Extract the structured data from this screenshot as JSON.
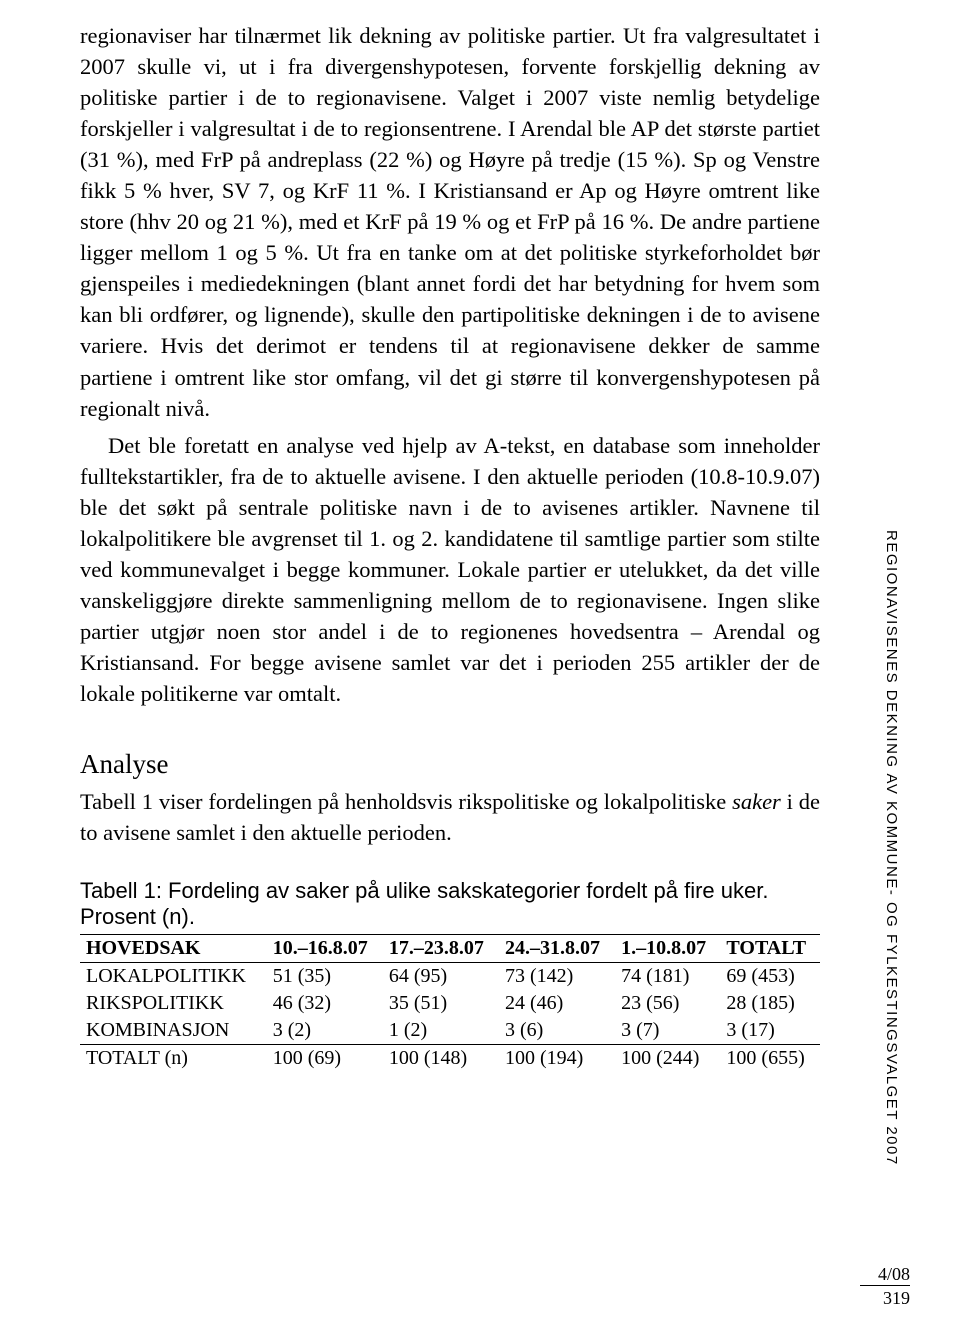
{
  "colors": {
    "background": "#ffffff",
    "text": "#000000",
    "rule": "#000000"
  },
  "typography": {
    "body_font": "Georgia, Times New Roman, serif",
    "body_size_pt": 17,
    "caption_font": "Arial, Helvetica, sans-serif",
    "caption_size_pt": 16,
    "side_size_pt": 11,
    "heading_size_pt": 20
  },
  "paragraphs": {
    "p1": "regionaviser har tilnærmet lik dekning av politiske partier. Ut fra valgresultatet i 2007 skulle vi, ut i fra divergenshypotesen, forvente forskjellig dekning av politiske partier i de to regionavisene. Valget i 2007 viste nemlig betydelige forskjeller i valgresultat i de to regionsentrene. I Arendal ble AP det største partiet (31 %), med FrP på andreplass (22 %) og Høyre på tredje (15 %). Sp og Venstre fikk 5 % hver, SV 7, og KrF 11 %. I Kristiansand er Ap og Høyre omtrent like store (hhv 20 og 21 %), med et KrF på 19 % og et FrP på 16 %. De andre partiene ligger mellom 1 og 5 %. Ut fra en tanke om at det politiske styrkeforholdet bør gjenspeiles i mediedekningen (blant annet fordi det har betydning for hvem som kan bli ordfører, og lignende), skulle den partipolitiske dekningen i de to avisene variere. Hvis det derimot er tendens til at regionavisene dekker de samme partiene i omtrent like stor omfang, vil det gi større til konvergenshypotesen på regionalt nivå.",
    "p2": "Det ble foretatt en analyse ved hjelp av A-tekst, en database som inneholder fulltekstartikler, fra de to aktuelle avisene. I den aktuelle perioden (10.8-10.9.07) ble det søkt på sentrale politiske navn i de to avisenes artikler. Navnene til lokalpolitikere ble avgrenset til 1. og 2. kandidatene til samtlige partier som stilte ved kommunevalget i begge kommuner. Lokale partier er utelukket, da det ville vanskeliggjøre direkte sammenligning mellom de to regionavisene. Ingen slike partier utgjør noen stor andel i de to regionenes hovedsentra – Arendal og Kristiansand. For begge avisene samlet var det i perioden 255 artikler der de lokale politikerne var omtalt."
  },
  "heading_analyse": "Analyse",
  "analyse_intro_a": "Tabell 1 viser fordelingen på henholdsvis rikspolitiske og lokalpolitiske ",
  "analyse_intro_italic": "saker",
  "analyse_intro_b": " i de to avisene samlet i den aktuelle perioden.",
  "table1": {
    "caption_line1": "Tabell 1: Fordeling av saker på ulike sakskategorier fordelt på fire uker.",
    "caption_line2": "Prosent (n).",
    "columns": [
      "HOVEDSAK",
      "10.–16.8.07",
      "17.–23.8.07",
      "24.–31.8.07",
      "1.–10.8.07",
      "TOTALT"
    ],
    "rows": [
      [
        "LOKALPOLITIKK",
        "51 (35)",
        "64 (95)",
        "73 (142)",
        "74 (181)",
        "69 (453)"
      ],
      [
        "RIKSPOLITIKK",
        "46 (32)",
        "35 (51)",
        "24 (46)",
        "23 (56)",
        "28 (185)"
      ],
      [
        "KOMBINASJON",
        "3 (2)",
        "1 (2)",
        "3 (6)",
        "3 (7)",
        "3 (17)"
      ],
      [
        "TOTALT (n)",
        "100 (69)",
        "100 (148)",
        "100 (194)",
        "100 (244)",
        "100 (655)"
      ]
    ],
    "col_align": [
      "left",
      "left",
      "left",
      "left",
      "left",
      "left"
    ]
  },
  "side_text": "REGIONAVISENES DEKNING AV KOMMUNE- OG FYLKESTINGSVALGET 2007",
  "footer": {
    "issue": "4/08",
    "page": "319"
  }
}
